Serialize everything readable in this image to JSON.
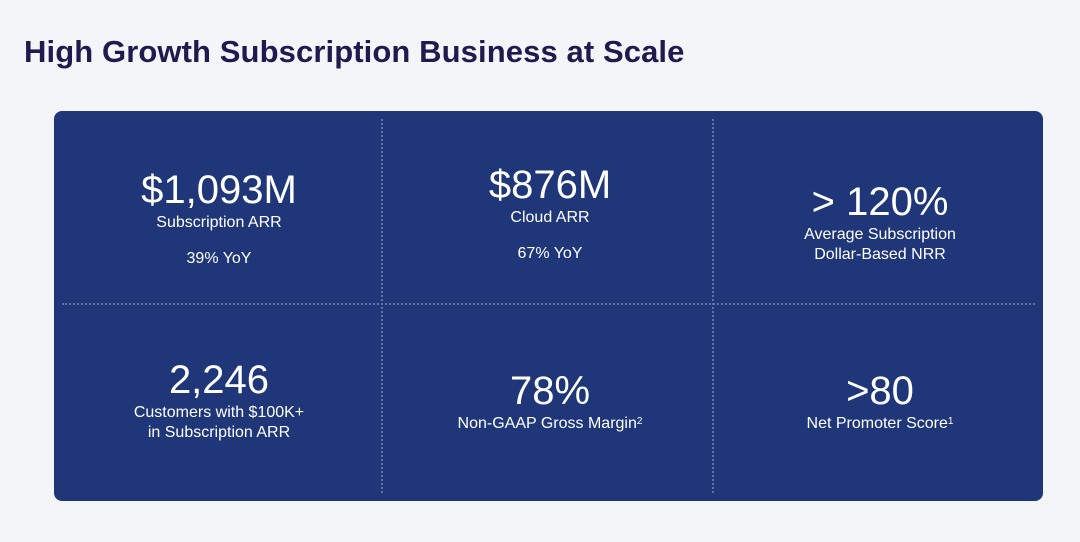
{
  "page": {
    "title": "High Growth Subscription Business at Scale"
  },
  "metrics": [
    {
      "value": "$1,093M",
      "label": "Subscription ARR",
      "sub": "39% YoY"
    },
    {
      "value": "$876M",
      "label": "Cloud ARR",
      "sub": "67% YoY"
    },
    {
      "value": "> 120%",
      "label_line1": "Average Subscription",
      "label_line2": "Dollar-Based NRR"
    },
    {
      "value": "2,246",
      "label_line1": "Customers with $100K+",
      "label_line2": "in Subscription ARR"
    },
    {
      "value": "78%",
      "label": "Non-GAAP Gross Margin",
      "footnote": "2"
    },
    {
      "value": ">80",
      "label": "Net Promoter Score",
      "footnote": "1"
    }
  ],
  "colors": {
    "background": "#f4f5f8",
    "title": "#201a4f",
    "panel": "#1f3779",
    "divider": "#5f74a8",
    "text": "#ffffff"
  }
}
